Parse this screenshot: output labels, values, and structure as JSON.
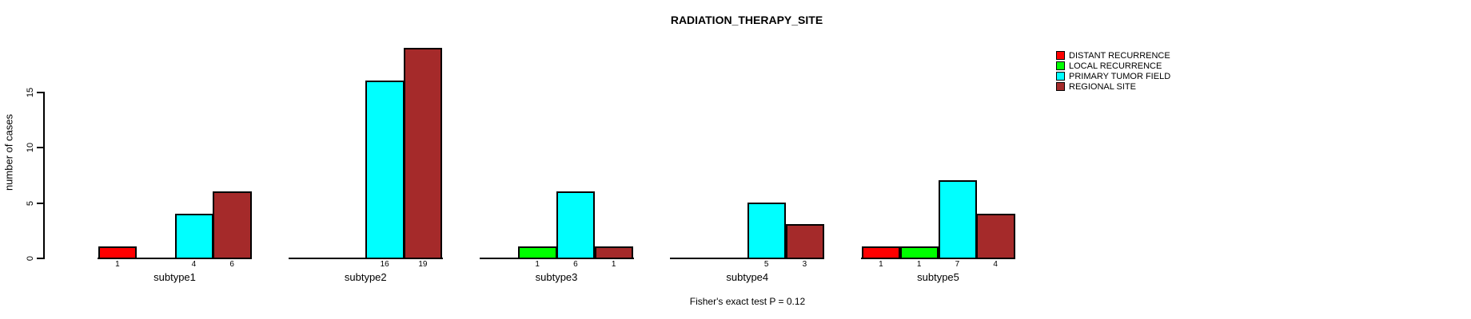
{
  "chart_data": {
    "type": "bar",
    "title": "RADIATION_THERAPY_SITE",
    "xlabel": "",
    "ylabel": "number of cases",
    "categories": [
      "subtype1",
      "subtype2",
      "subtype3",
      "subtype4",
      "subtype5"
    ],
    "series": [
      {
        "name": "DISTANT RECURRENCE",
        "color": "#FF0000",
        "values": [
          1,
          0,
          0,
          0,
          1
        ]
      },
      {
        "name": "LOCAL RECURRENCE",
        "color": "#00FF00",
        "values": [
          0,
          0,
          1,
          0,
          1
        ]
      },
      {
        "name": "PRIMARY TUMOR FIELD",
        "color": "#00FFFF",
        "values": [
          4,
          16,
          6,
          5,
          7
        ]
      },
      {
        "name": "REGIONAL SITE",
        "color": "#A52A2A",
        "values": [
          6,
          19,
          1,
          3,
          4
        ]
      }
    ],
    "yticks": [
      0,
      5,
      10,
      15
    ],
    "ylim": [
      0,
      19.3
    ],
    "grid": false,
    "legend_position": "top-right",
    "bar_value_labels": "value printed under each non-zero bar",
    "annotation": "Fisher's exact test P = 0.12",
    "background_color": "#FFFFFF",
    "axis_color": "#000000",
    "bar_border_color": "#000000"
  }
}
